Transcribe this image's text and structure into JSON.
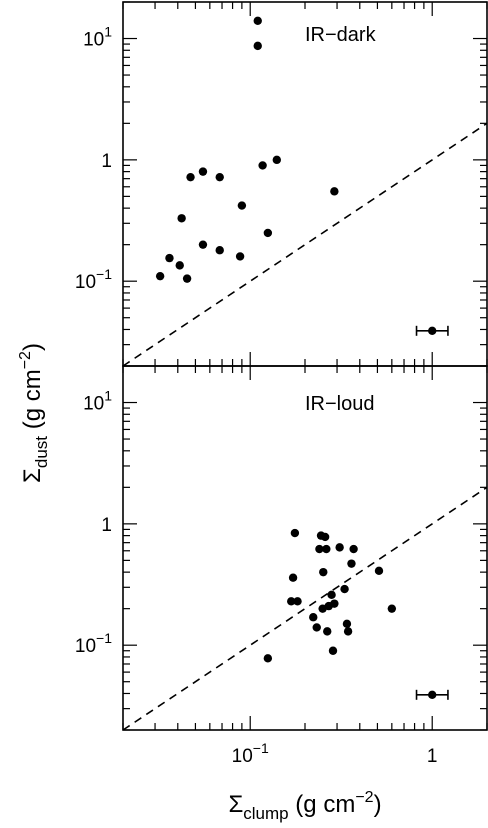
{
  "chart_data": [
    {
      "type": "scatter",
      "panel_label": "IR−dark",
      "scale": {
        "x": "log",
        "y": "log"
      },
      "xlim": [
        0.02,
        2.0
      ],
      "ylim": [
        0.02,
        20.0
      ],
      "yticks": [
        {
          "value": 10,
          "label": "10",
          "exp": "1"
        },
        {
          "value": 1,
          "label": "1",
          "exp": ""
        },
        {
          "value": 0.1,
          "label": "10",
          "exp": "−1"
        }
      ],
      "reference_line": {
        "style": "dashed",
        "slope": 1,
        "points": [
          [
            0.02,
            0.02
          ],
          [
            2.0,
            2.0
          ]
        ]
      },
      "points": [
        {
          "x": 0.032,
          "y": 0.11
        },
        {
          "x": 0.036,
          "y": 0.155
        },
        {
          "x": 0.041,
          "y": 0.135
        },
        {
          "x": 0.042,
          "y": 0.33
        },
        {
          "x": 0.045,
          "y": 0.105
        },
        {
          "x": 0.047,
          "y": 0.72
        },
        {
          "x": 0.055,
          "y": 0.2
        },
        {
          "x": 0.055,
          "y": 0.8
        },
        {
          "x": 0.068,
          "y": 0.18
        },
        {
          "x": 0.068,
          "y": 0.72
        },
        {
          "x": 0.088,
          "y": 0.16
        },
        {
          "x": 0.09,
          "y": 0.42
        },
        {
          "x": 0.11,
          "y": 14.0
        },
        {
          "x": 0.11,
          "y": 8.7
        },
        {
          "x": 0.117,
          "y": 0.9
        },
        {
          "x": 0.125,
          "y": 0.25
        },
        {
          "x": 0.14,
          "y": 1.0
        },
        {
          "x": 0.29,
          "y": 0.55
        }
      ],
      "error_bar": {
        "x": 1.0,
        "y": 0.039,
        "xerr": [
          0.82,
          1.22
        ]
      }
    },
    {
      "type": "scatter",
      "panel_label": "IR−loud",
      "scale": {
        "x": "log",
        "y": "log"
      },
      "xlim": [
        0.02,
        2.0
      ],
      "ylim": [
        0.02,
        20.0
      ],
      "xlabel": "Σ",
      "xlabel_sub": "clump",
      "xlabel_unit": " (g cm",
      "xlabel_exp": "−2",
      "xlabel_close": ")",
      "xticks": [
        {
          "value": 0.1,
          "label": "10",
          "exp": "−1"
        },
        {
          "value": 1,
          "label": "1",
          "exp": ""
        }
      ],
      "yticks": [
        {
          "value": 10,
          "label": "10",
          "exp": "1"
        },
        {
          "value": 1,
          "label": "1",
          "exp": ""
        },
        {
          "value": 0.1,
          "label": "10",
          "exp": "−1"
        }
      ],
      "reference_line": {
        "style": "dashed",
        "slope": 1,
        "points": [
          [
            0.02,
            0.02
          ],
          [
            2.0,
            2.0
          ]
        ]
      },
      "points": [
        {
          "x": 0.125,
          "y": 0.078
        },
        {
          "x": 0.168,
          "y": 0.23
        },
        {
          "x": 0.172,
          "y": 0.36
        },
        {
          "x": 0.176,
          "y": 0.84
        },
        {
          "x": 0.182,
          "y": 0.23
        },
        {
          "x": 0.222,
          "y": 0.17
        },
        {
          "x": 0.232,
          "y": 0.14
        },
        {
          "x": 0.24,
          "y": 0.62
        },
        {
          "x": 0.245,
          "y": 0.8
        },
        {
          "x": 0.25,
          "y": 0.2
        },
        {
          "x": 0.252,
          "y": 0.4
        },
        {
          "x": 0.258,
          "y": 0.78
        },
        {
          "x": 0.262,
          "y": 0.62
        },
        {
          "x": 0.265,
          "y": 0.13
        },
        {
          "x": 0.27,
          "y": 0.21
        },
        {
          "x": 0.28,
          "y": 0.26
        },
        {
          "x": 0.285,
          "y": 0.09
        },
        {
          "x": 0.29,
          "y": 0.22
        },
        {
          "x": 0.31,
          "y": 0.64
        },
        {
          "x": 0.33,
          "y": 0.29
        },
        {
          "x": 0.34,
          "y": 0.15
        },
        {
          "x": 0.345,
          "y": 0.13
        },
        {
          "x": 0.36,
          "y": 0.47
        },
        {
          "x": 0.37,
          "y": 0.62
        },
        {
          "x": 0.51,
          "y": 0.41
        },
        {
          "x": 0.6,
          "y": 0.2
        }
      ],
      "error_bar": {
        "x": 1.0,
        "y": 0.039,
        "xerr": [
          0.82,
          1.22
        ]
      }
    }
  ],
  "ylabel": "Σ",
  "ylabel_sub": "dust",
  "ylabel_unit": " (g cm",
  "ylabel_exp": "−2",
  "ylabel_close": ")"
}
